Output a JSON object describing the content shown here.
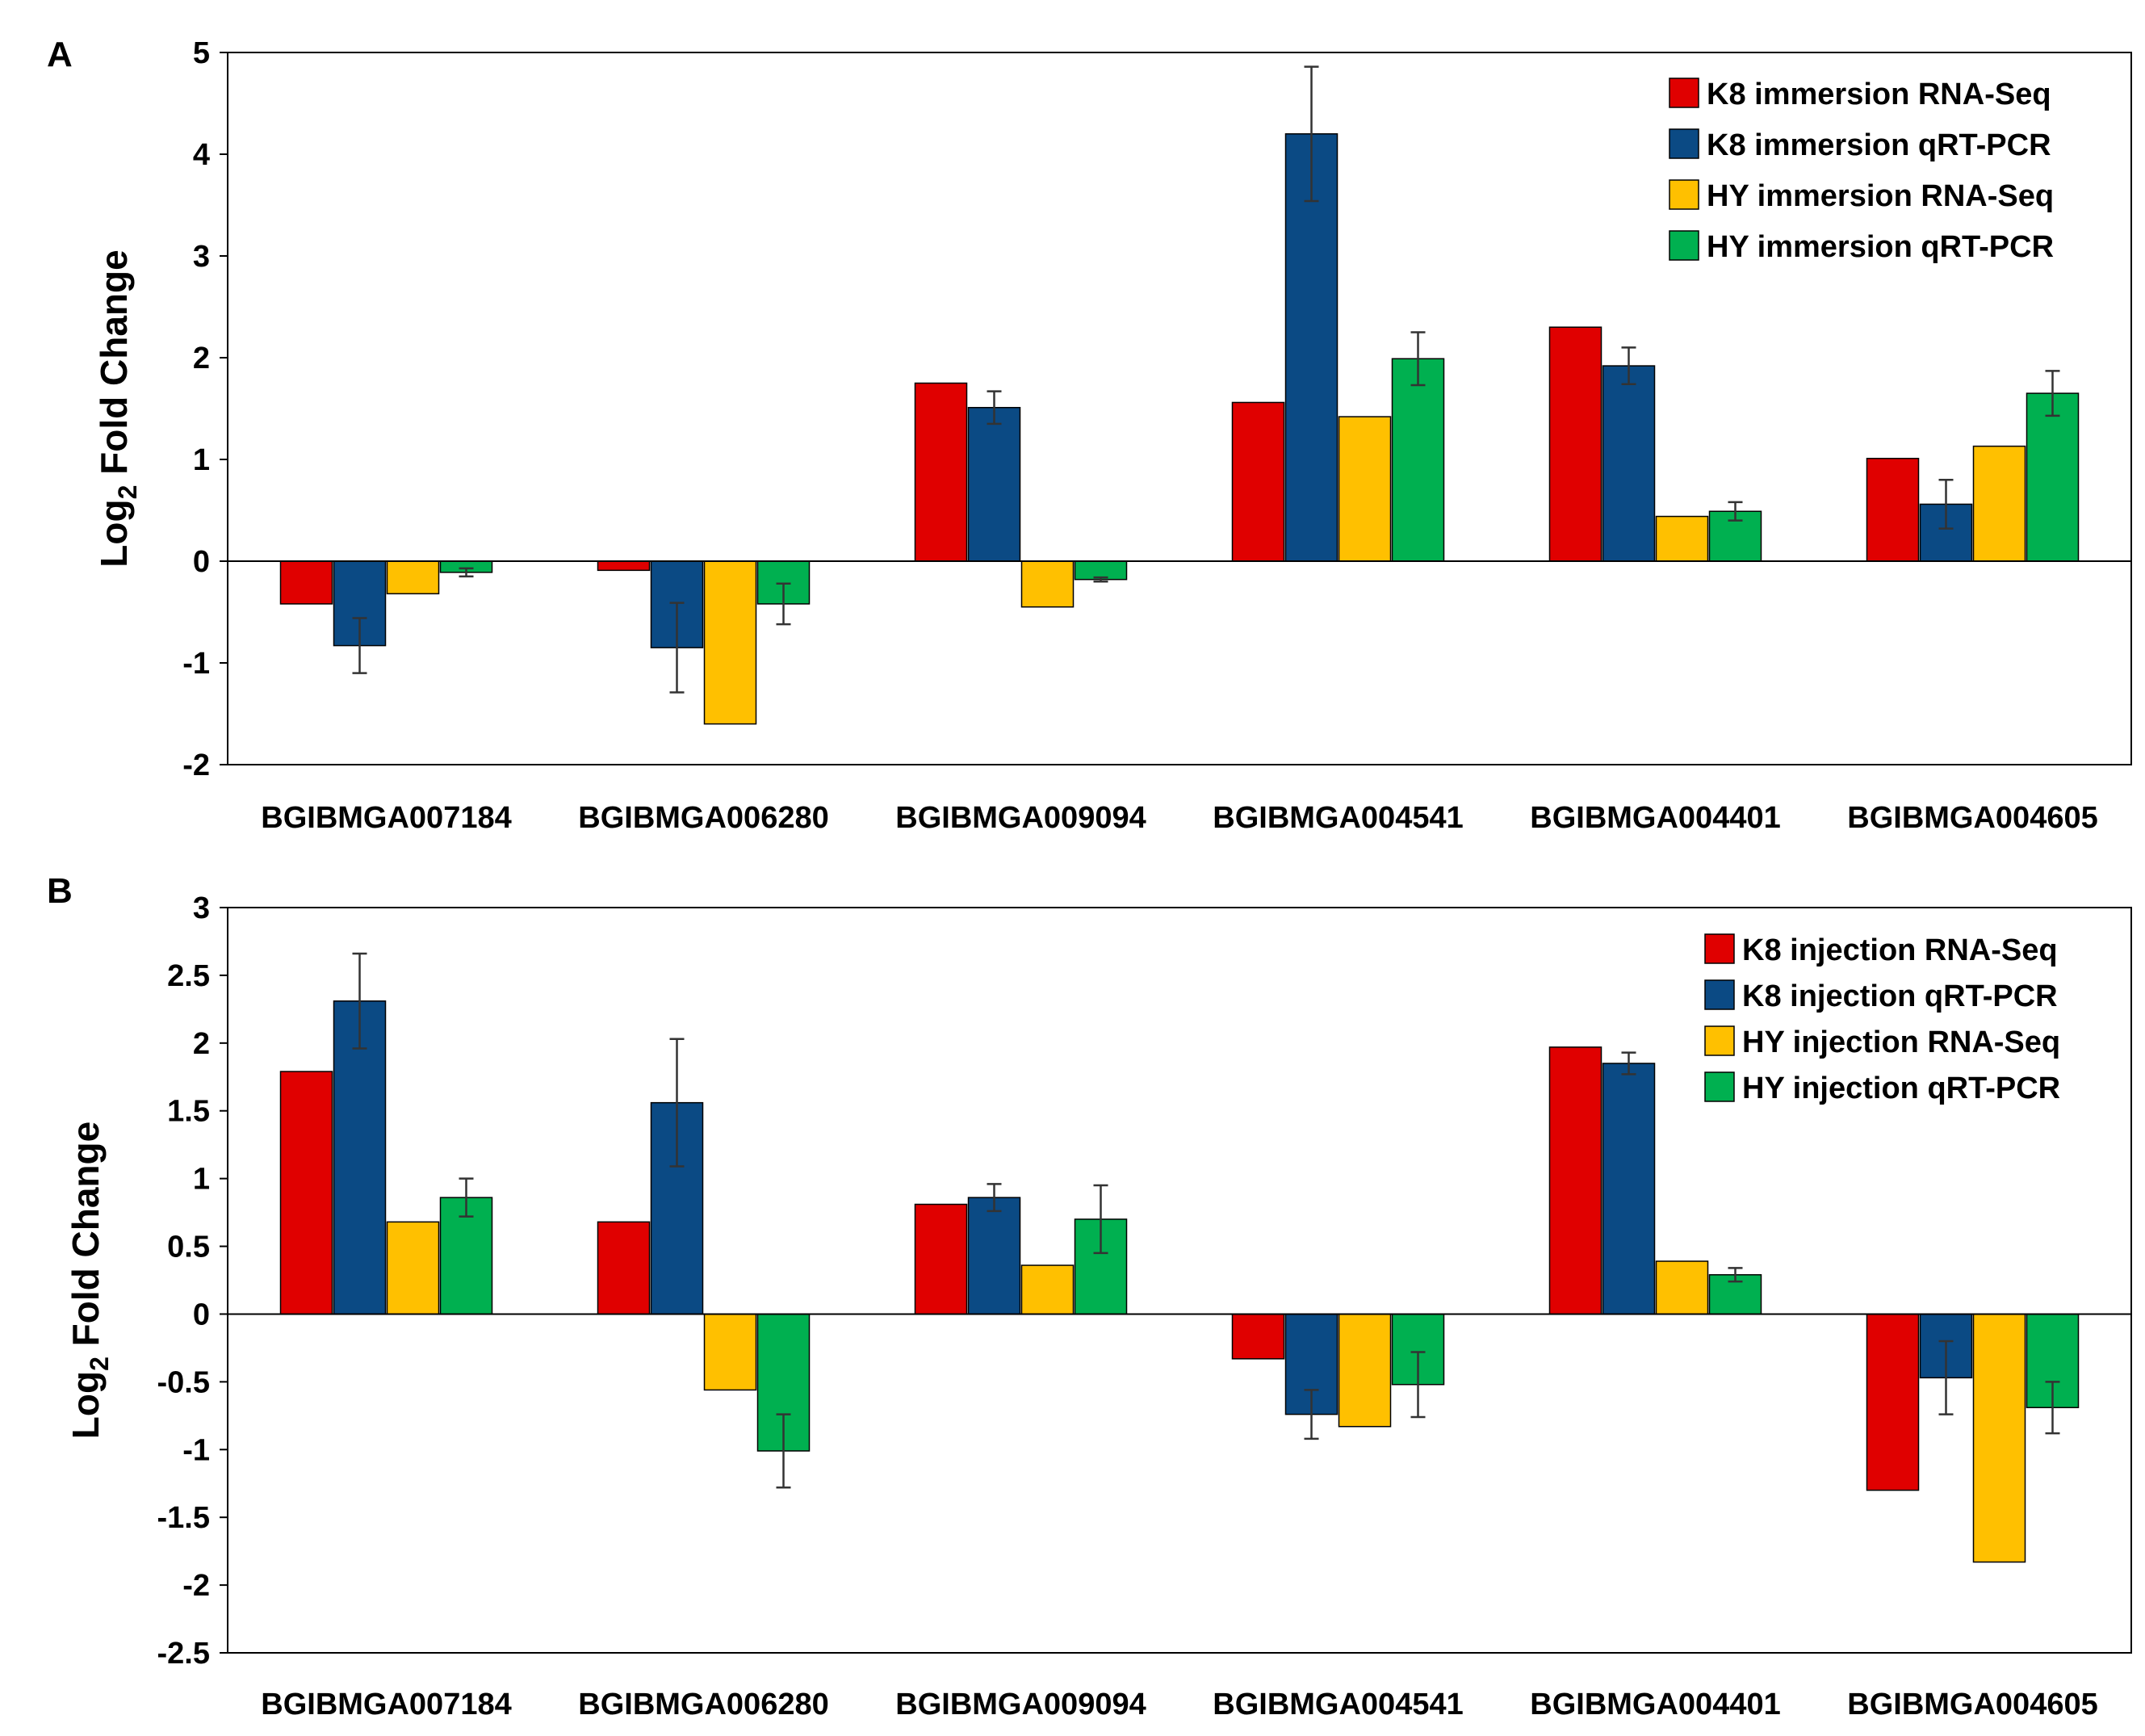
{
  "chart_data": [
    {
      "type": "bar",
      "panel_label": "A",
      "ylabel": "Log",
      "ylabel_sub": "2",
      "ylabel_rest": " Fold Change",
      "ylim": [
        -2,
        5
      ],
      "yticks": [
        -2,
        -1,
        0,
        1,
        2,
        3,
        4,
        5
      ],
      "ytick_labels": [
        "-2",
        "-1",
        "0",
        "1",
        "2",
        "3",
        "4",
        "5"
      ],
      "categories": [
        "BGIBMGA007184",
        "BGIBMGA006280",
        "BGIBMGA009094",
        "BGIBMGA004541",
        "BGIBMGA004401",
        "BGIBMGA004605"
      ],
      "legend_position": "top-right",
      "series": [
        {
          "name": "K8 immersion RNA-Seq",
          "color": "#e00000",
          "values": [
            -0.42,
            -0.09,
            1.75,
            1.56,
            2.3,
            1.01
          ],
          "errors": null
        },
        {
          "name": "K8 immersion qRT-PCR",
          "color": "#0b4a84",
          "values": [
            -0.83,
            -0.85,
            1.51,
            4.2,
            1.92,
            0.56
          ],
          "errors": [
            0.27,
            0.44,
            0.16,
            0.66,
            0.18,
            0.24
          ]
        },
        {
          "name": "HY immersion RNA-Seq",
          "color": "#ffc000",
          "values": [
            -0.32,
            -1.6,
            -0.45,
            1.42,
            0.44,
            1.13
          ],
          "errors": null
        },
        {
          "name": "HY immersion qRT-PCR",
          "color": "#00b050",
          "values": [
            -0.11,
            -0.42,
            -0.18,
            1.99,
            0.49,
            1.65
          ],
          "errors": [
            0.04,
            0.2,
            0.02,
            0.26,
            0.09,
            0.22
          ]
        }
      ]
    },
    {
      "type": "bar",
      "panel_label": "B",
      "ylabel": "Log",
      "ylabel_sub": "2",
      "ylabel_rest": " Fold Change",
      "ylim": [
        -2.5,
        3
      ],
      "yticks": [
        -2.5,
        -2,
        -1.5,
        -1,
        -0.5,
        0,
        0.5,
        1,
        1.5,
        2,
        2.5,
        3
      ],
      "ytick_labels": [
        "-2.5",
        "-2",
        "-1.5",
        "-1",
        "-0.5",
        "0",
        "0.5",
        "1",
        "1.5",
        "2",
        "2.5",
        "3"
      ],
      "categories": [
        "BGIBMGA007184",
        "BGIBMGA006280",
        "BGIBMGA009094",
        "BGIBMGA004541",
        "BGIBMGA004401",
        "BGIBMGA004605"
      ],
      "legend_position": "top-right",
      "series": [
        {
          "name": "K8 injection RNA-Seq",
          "color": "#e00000",
          "values": [
            1.79,
            0.68,
            0.81,
            -0.33,
            1.97,
            -1.3
          ],
          "errors": null
        },
        {
          "name": "K8 injection qRT-PCR",
          "color": "#0b4a84",
          "values": [
            2.31,
            1.56,
            0.86,
            -0.74,
            1.85,
            -0.47
          ],
          "errors": [
            0.35,
            0.47,
            0.1,
            0.18,
            0.08,
            0.27
          ]
        },
        {
          "name": "HY injection RNA-Seq",
          "color": "#ffc000",
          "values": [
            0.68,
            -0.56,
            0.36,
            -0.83,
            0.39,
            -1.83
          ],
          "errors": null
        },
        {
          "name": "HY injection qRT-PCR",
          "color": "#00b050",
          "values": [
            0.86,
            -1.01,
            0.7,
            -0.52,
            0.29,
            -0.69
          ],
          "errors": [
            0.14,
            0.27,
            0.25,
            0.24,
            0.05,
            0.19
          ]
        }
      ]
    }
  ]
}
